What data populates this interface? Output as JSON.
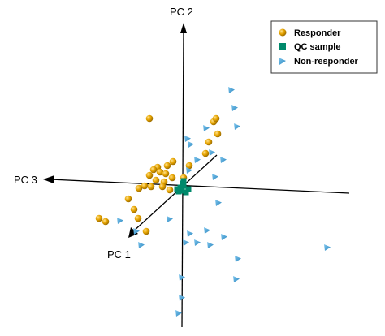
{
  "chart_data": {
    "type": "scatter",
    "projection": "3d",
    "axes": [
      "PC 1",
      "PC 2",
      "PC 3"
    ],
    "legend_position": "top-right",
    "series": [
      {
        "name": "Responder",
        "marker": "sphere",
        "color": "#e6a400",
        "points": [
          [
            184,
            146
          ],
          [
            263,
            150
          ],
          [
            266,
            146
          ],
          [
            268,
            165
          ],
          [
            257,
            175
          ],
          [
            253,
            189
          ],
          [
            213,
            199
          ],
          [
            194,
            206
          ],
          [
            206,
            204
          ],
          [
            189,
            209
          ],
          [
            197,
            212
          ],
          [
            204,
            214
          ],
          [
            212,
            219
          ],
          [
            184,
            216
          ],
          [
            192,
            222
          ],
          [
            202,
            224
          ],
          [
            178,
            229
          ],
          [
            171,
            232
          ],
          [
            186,
            230
          ],
          [
            200,
            230
          ],
          [
            209,
            234
          ],
          [
            158,
            245
          ],
          [
            165,
            258
          ],
          [
            122,
            269
          ],
          [
            130,
            273
          ],
          [
            170,
            269
          ],
          [
            180,
            285
          ],
          [
            233,
            204
          ],
          [
            226,
            219
          ]
        ]
      },
      {
        "name": "QC sample",
        "marker": "square",
        "color": "#00896b",
        "points": [
          [
            218,
            233
          ],
          [
            222,
            231
          ],
          [
            226,
            229
          ],
          [
            224,
            235
          ],
          [
            229,
            237
          ],
          [
            220,
            236
          ],
          [
            232,
            233
          ],
          [
            226,
            223
          ],
          [
            225,
            226
          ]
        ]
      },
      {
        "name": "Non-responder",
        "marker": "triangle",
        "color": "#3e9fd5",
        "points": [
          [
            285,
            111
          ],
          [
            289,
            133
          ],
          [
            254,
            158
          ],
          [
            292,
            156
          ],
          [
            231,
            171
          ],
          [
            261,
            188
          ],
          [
            243,
            197
          ],
          [
            233,
            210
          ],
          [
            275,
            197
          ],
          [
            235,
            178
          ],
          [
            265,
            218
          ],
          [
            269,
            250
          ],
          [
            255,
            284
          ],
          [
            234,
            288
          ],
          [
            243,
            299
          ],
          [
            229,
            299
          ],
          [
            276,
            292
          ],
          [
            259,
            302
          ],
          [
            293,
            319
          ],
          [
            291,
            344
          ],
          [
            403,
            305
          ],
          [
            224,
            342
          ],
          [
            224,
            367
          ],
          [
            220,
            386
          ],
          [
            174,
            302
          ],
          [
            168,
            285
          ],
          [
            148,
            272
          ],
          [
            209,
            270
          ]
        ]
      }
    ]
  },
  "legend": {
    "items": [
      {
        "label": "Responder",
        "marker": "sphere",
        "color": "#e6a400"
      },
      {
        "label": "QC sample",
        "marker": "square",
        "color": "#00896b"
      },
      {
        "label": "Non-responder",
        "marker": "triangle",
        "color": "#3e9fd5"
      }
    ]
  },
  "axis_labels": {
    "pc1": "PC 1",
    "pc2": "PC 2",
    "pc3": "PC 3"
  },
  "colors": {
    "axis": "#000000",
    "responder": "#e6a400",
    "qc": "#00896b",
    "nonresponder": "#3e9fd5"
  }
}
